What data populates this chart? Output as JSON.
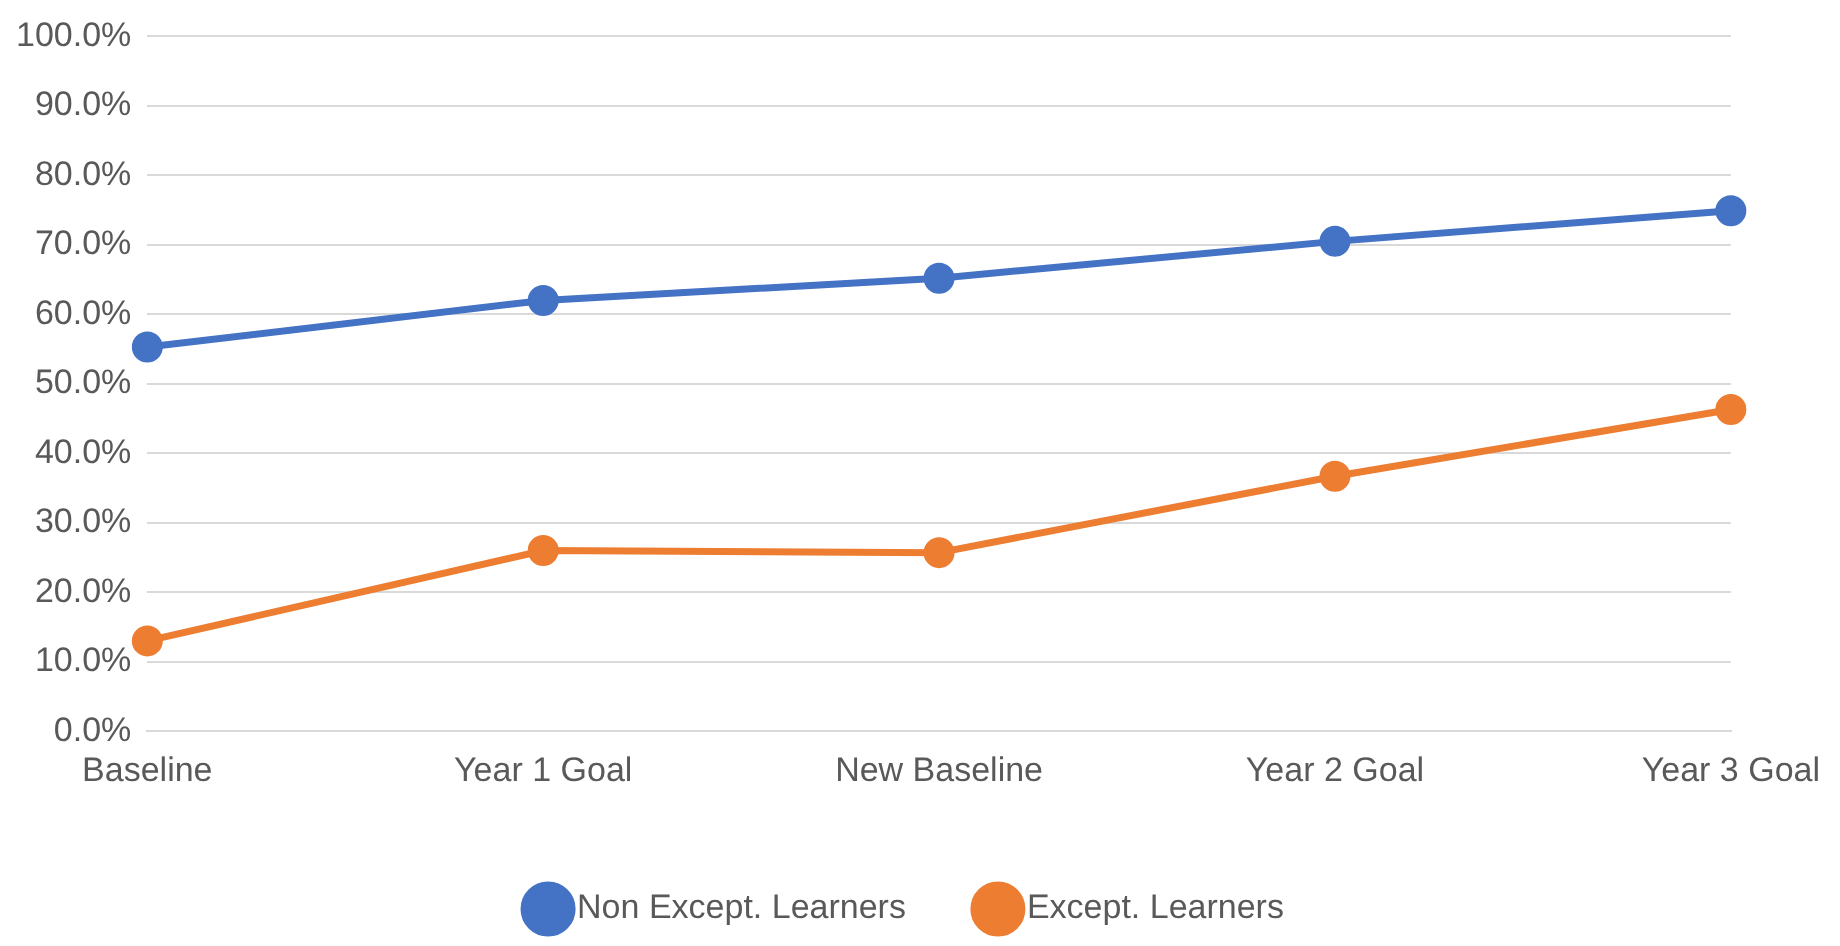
{
  "chart_data": {
    "type": "line",
    "categories": [
      "Baseline",
      "Year 1 Goal",
      "New Baseline",
      "Year 2 Goal",
      "Year 3 Goal"
    ],
    "series": [
      {
        "name": "Non Except. Learners",
        "color": "#4472c4",
        "values": [
          55.3,
          62.0,
          65.2,
          70.5,
          74.9
        ]
      },
      {
        "name": "Except. Learners",
        "color": "#ed7d31",
        "values": [
          13.0,
          26.0,
          25.7,
          36.7,
          46.3
        ]
      }
    ],
    "ylim": [
      0,
      100
    ],
    "yticks": [
      {
        "value": 0,
        "label": "0.0%"
      },
      {
        "value": 10,
        "label": "10.0%"
      },
      {
        "value": 20,
        "label": "20.0%"
      },
      {
        "value": 30,
        "label": "30.0%"
      },
      {
        "value": 40,
        "label": "40.0%"
      },
      {
        "value": 50,
        "label": "50.0%"
      },
      {
        "value": 60,
        "label": "60.0%"
      },
      {
        "value": 70,
        "label": "70.0%"
      },
      {
        "value": 80,
        "label": "80.0%"
      },
      {
        "value": 90,
        "label": "90.0%"
      },
      {
        "value": 100,
        "label": "100.0%"
      }
    ],
    "grid": "y",
    "legend": "bottom",
    "marker": "circle",
    "line_style": "solid"
  }
}
